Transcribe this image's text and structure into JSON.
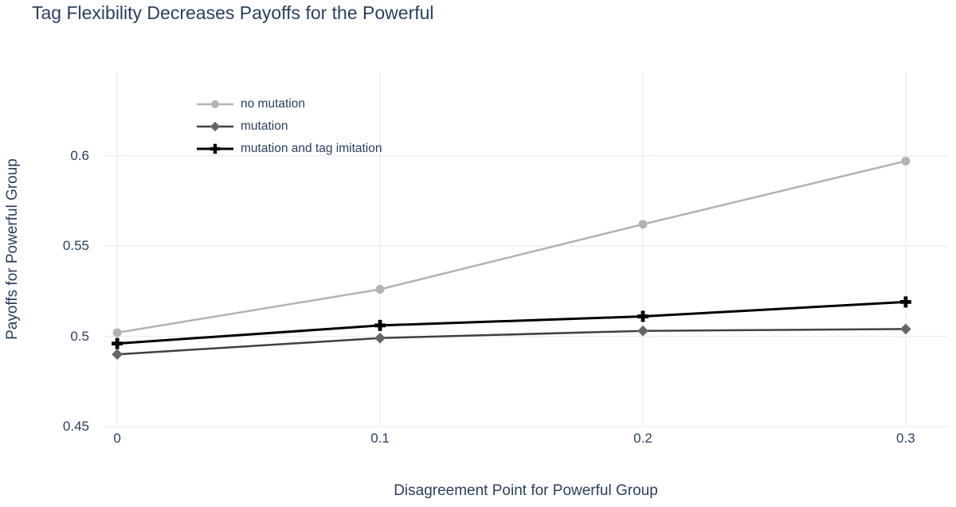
{
  "chart_data": {
    "type": "line",
    "title": "Tag Flexibility Decreases Payoffs for the Powerful",
    "xlabel": "Disagreement Point for Powerful Group",
    "ylabel": "Payoffs for Powerful Group",
    "x": [
      0,
      0.1,
      0.2,
      0.3
    ],
    "series": [
      {
        "id": "no-mutation",
        "name": "no mutation",
        "marker": "circle",
        "color": "#b3b3b3",
        "line_color": "#b3b3b3",
        "line_width": 2.5,
        "values": [
          0.502,
          0.526,
          0.562,
          0.597
        ]
      },
      {
        "id": "mutation",
        "name": "mutation",
        "marker": "diamond",
        "color": "#666666",
        "line_color": "#404040",
        "line_width": 2.5,
        "values": [
          0.49,
          0.499,
          0.503,
          0.504
        ]
      },
      {
        "id": "mutation-and-tag-imitation",
        "name": "mutation and tag imitation",
        "marker": "plus",
        "color": "#000000",
        "line_color": "#000000",
        "line_width": 3,
        "values": [
          0.496,
          0.506,
          0.511,
          0.519
        ]
      }
    ],
    "xticks": [
      0,
      0.1,
      0.2,
      0.3
    ],
    "xtick_labels": [
      "0",
      "0.1",
      "0.2",
      "0.3"
    ],
    "yticks": [
      0.45,
      0.5,
      0.55,
      0.6
    ],
    "ytick_labels": [
      "0.45",
      "0.5",
      "0.55",
      "0.6"
    ],
    "xlim": [
      -0.0052,
      0.3161
    ],
    "ylim": [
      0.45,
      0.6465
    ],
    "grid": true,
    "grid_color": "#e8eef7",
    "text_color": "#2a3f5f",
    "background": "#ffffff",
    "legend_position": "inside-top-left"
  }
}
